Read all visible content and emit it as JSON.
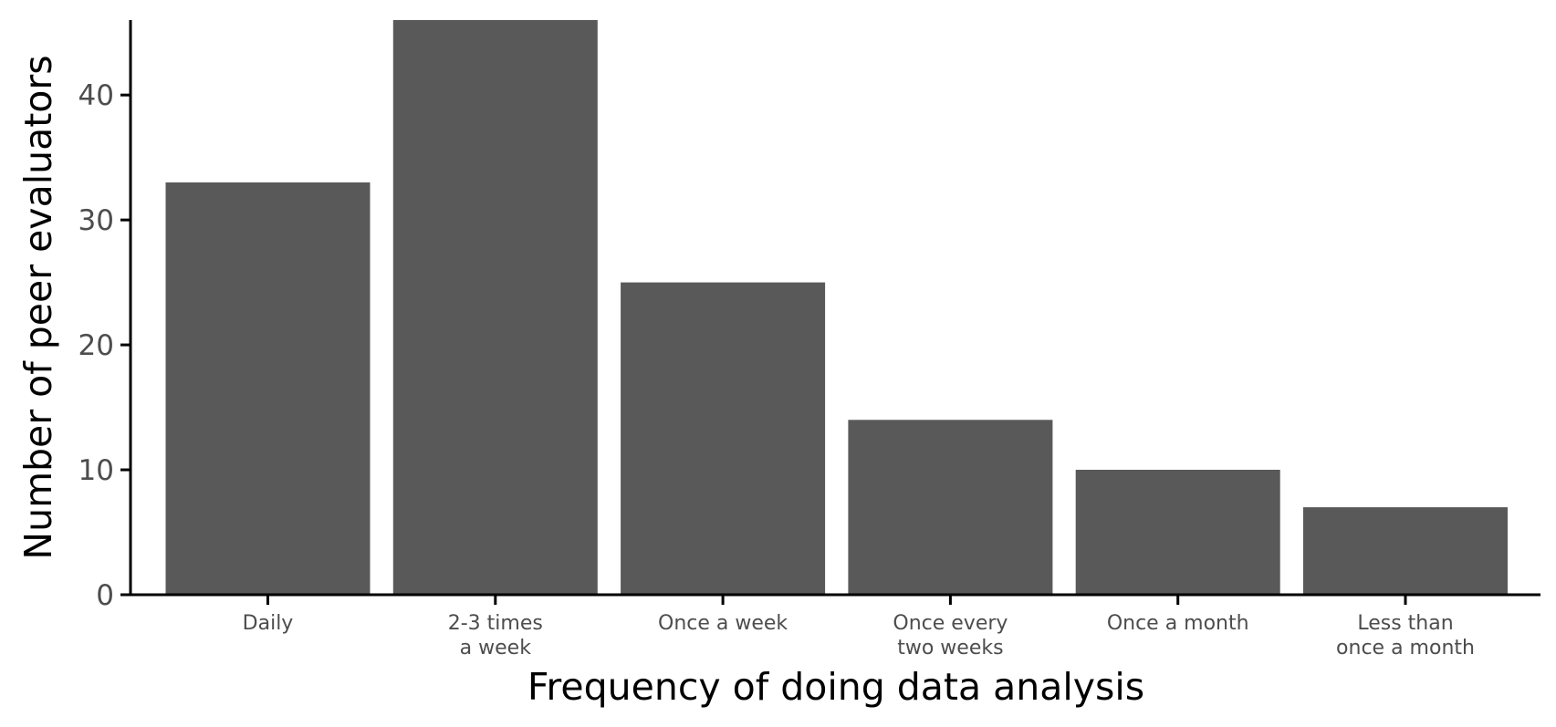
{
  "chart_data": {
    "type": "bar",
    "title": "",
    "xlabel": "Frequency of doing data analysis",
    "ylabel": "Number of peer evaluators",
    "categories": [
      [
        "Daily"
      ],
      [
        "2-3 times",
        "a week"
      ],
      [
        "Once a week"
      ],
      [
        "Once every",
        "two weeks"
      ],
      [
        "Once a month"
      ],
      [
        "Less than",
        "once a month"
      ]
    ],
    "values": [
      33,
      46,
      25,
      14,
      10,
      7
    ],
    "ylim": [
      0,
      46
    ],
    "yticks": [
      0,
      10,
      20,
      30,
      40
    ],
    "grid": false,
    "legend": "none",
    "colors": {
      "bar": "#595959",
      "axis": "#000000",
      "tick_text": "#4d4d4d"
    }
  }
}
